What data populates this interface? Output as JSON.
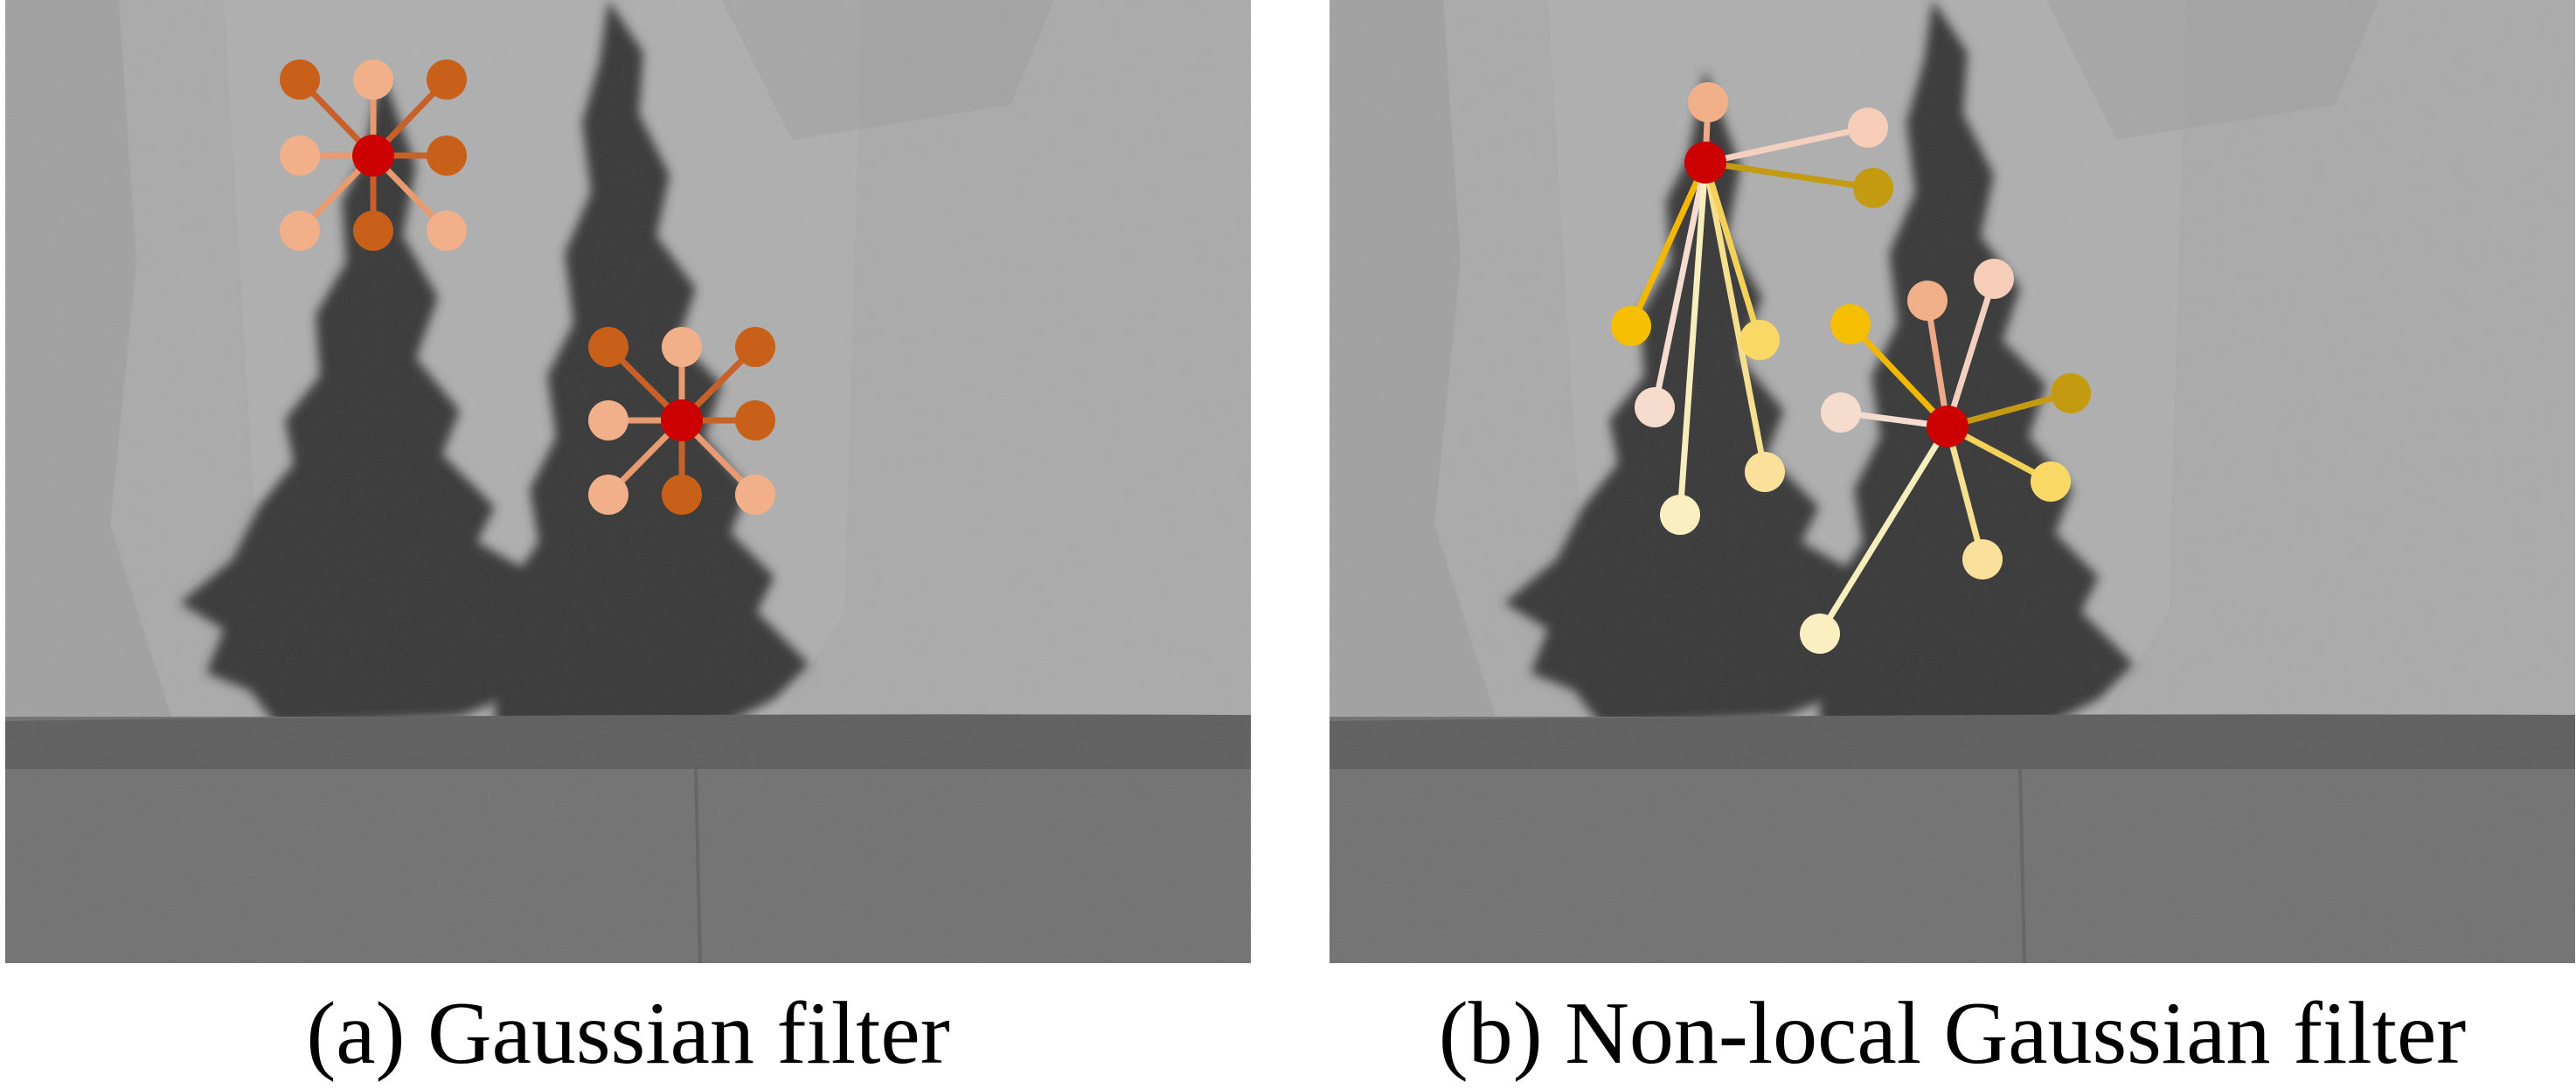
{
  "panels": [
    {
      "caption": "(a) Gaussian filter",
      "stars": [
        {
          "center": "#cc0000",
          "neighbors": [
            {
              "edge": "#c8602a",
              "node": "#c8601a"
            },
            {
              "edge": "#e89a70",
              "node": "#f2b08a"
            },
            {
              "edge": "#c8602a",
              "node": "#c8601a"
            },
            {
              "edge": "#e89a70",
              "node": "#f2b08a"
            },
            {
              "edge": "#c8602a",
              "node": "#c8601a"
            },
            {
              "edge": "#e89a70",
              "node": "#f2b08a"
            },
            {
              "edge": "#c8602a",
              "node": "#c8601a"
            },
            {
              "edge": "#e89a70",
              "node": "#f2b08a"
            }
          ]
        },
        {
          "center": "#cc0000",
          "neighbors": [
            {
              "edge": "#c8602a",
              "node": "#c8601a"
            },
            {
              "edge": "#e89a70",
              "node": "#f2b08a"
            },
            {
              "edge": "#c8602a",
              "node": "#c8601a"
            },
            {
              "edge": "#e89a70",
              "node": "#f2b08a"
            },
            {
              "edge": "#c8602a",
              "node": "#c8601a"
            },
            {
              "edge": "#e89a70",
              "node": "#f2b08a"
            },
            {
              "edge": "#c8602a",
              "node": "#c8601a"
            },
            {
              "edge": "#e89a70",
              "node": "#f2b08a"
            }
          ]
        }
      ]
    },
    {
      "caption": "(b) Non-local Gaussian filter",
      "stars": [
        {
          "center": "#cc0000",
          "neighbors": [
            {
              "edge": "#eeaa88",
              "node": "#f2b08a"
            },
            {
              "edge": "#f4d0c0",
              "node": "#f6cdb8"
            },
            {
              "edge": "#c49a10",
              "node": "#c49a10"
            },
            {
              "edge": "#f2b800",
              "node": "#f5bf00"
            },
            {
              "edge": "#f4ddd0",
              "node": "#f6dccd"
            },
            {
              "edge": "#f6eebc",
              "node": "#fbeec0"
            },
            {
              "edge": "#f6e090",
              "node": "#fae09a"
            },
            {
              "edge": "#f4d25a",
              "node": "#f9d865"
            }
          ]
        },
        {
          "center": "#cc0000",
          "neighbors": [
            {
              "edge": "#eeaa88",
              "node": "#f2b08a"
            },
            {
              "edge": "#f4d0c0",
              "node": "#f6cdb8"
            },
            {
              "edge": "#c49a10",
              "node": "#c49a10"
            },
            {
              "edge": "#f2b800",
              "node": "#f5bf00"
            },
            {
              "edge": "#f4ddd0",
              "node": "#f6dccd"
            },
            {
              "edge": "#f4d25a",
              "node": "#f9d865"
            },
            {
              "edge": "#f6e090",
              "node": "#fae09a"
            },
            {
              "edge": "#f6eebc",
              "node": "#fbeec0"
            }
          ]
        }
      ]
    }
  ],
  "colors": {
    "sky": "#a9a9a9",
    "tree": "#333333",
    "wall": "#6e6e6e",
    "wall_top": "#5a5a5a"
  }
}
